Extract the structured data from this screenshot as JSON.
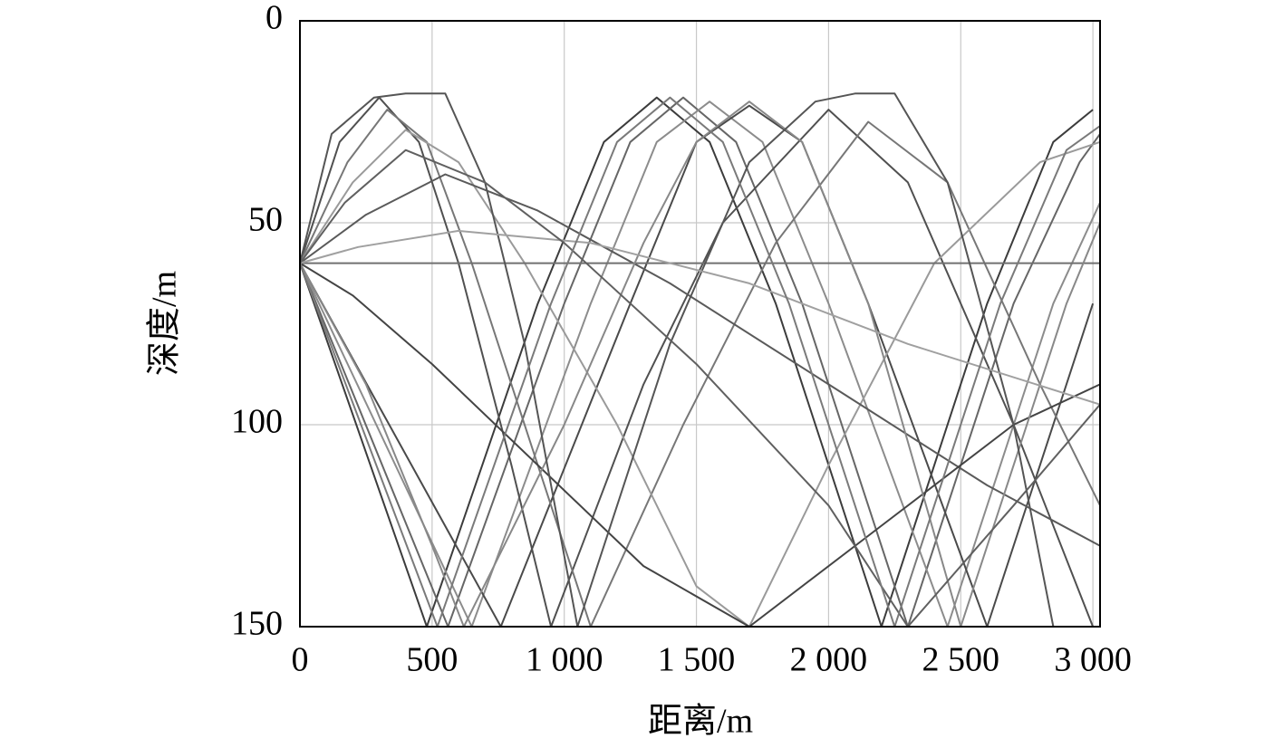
{
  "chart_data": {
    "type": "line",
    "xlabel": "距离/m",
    "ylabel": "深度/m",
    "xlim": [
      0,
      3027
    ],
    "ylim": [
      150,
      0
    ],
    "xticks": [
      0,
      500,
      {
        "value": 1000,
        "label": "1 000"
      },
      {
        "value": 1500,
        "label": "1 500"
      },
      {
        "value": 2000,
        "label": "2 000"
      },
      {
        "value": 2500,
        "label": "2 500"
      },
      {
        "value": 3000,
        "label": "3 000"
      }
    ],
    "yticks": [
      0,
      50,
      100,
      150
    ],
    "grid": true,
    "series": [
      {
        "color": "#3c3c3c",
        "x": [
          0,
          480,
          900,
          1150,
          1350,
          1550,
          1800,
          2200,
          2600,
          2850,
          3000
        ],
        "values": [
          60,
          150,
          70,
          30,
          19,
          30,
          70,
          150,
          70,
          30,
          22
        ]
      },
      {
        "color": "#666666",
        "x": [
          0,
          560,
          1000,
          1250,
          1450,
          1650,
          1900,
          2300,
          2700,
          2950,
          3027
        ],
        "values": [
          60,
          150,
          70,
          30,
          19,
          30,
          70,
          150,
          70,
          35,
          28
        ]
      },
      {
        "color": "#8c8c8c",
        "x": [
          0,
          650,
          1100,
          1350,
          1550,
          1750,
          2000,
          2450,
          2850,
          3027
        ],
        "values": [
          60,
          150,
          70,
          30,
          20,
          30,
          70,
          150,
          70,
          45
        ]
      },
      {
        "color": "#4a4a4a",
        "x": [
          0,
          760,
          1250,
          1500,
          1700,
          1900,
          2150,
          2600,
          3000
        ],
        "values": [
          60,
          150,
          70,
          30,
          21,
          30,
          70,
          150,
          70
        ]
      },
      {
        "color": "#505050",
        "x": [
          0,
          150,
          300,
          450,
          600,
          800,
          950,
          1300,
          1600,
          2000,
          2300,
          2700,
          3000
        ],
        "values": [
          60,
          30,
          19,
          30,
          60,
          110,
          150,
          90,
          50,
          22,
          40,
          100,
          150
        ]
      },
      {
        "color": "#777777",
        "x": [
          0,
          180,
          330,
          480,
          650,
          900,
          1100,
          1450,
          1800,
          2150,
          2450,
          2800,
          3027
        ],
        "values": [
          60,
          35,
          22,
          30,
          60,
          110,
          150,
          100,
          55,
          25,
          40,
          90,
          120
        ]
      },
      {
        "color": "#9a9a9a",
        "x": [
          0,
          200,
          400,
          600,
          850,
          1200,
          1500,
          1700,
          2000,
          2400,
          2800,
          3027
        ],
        "values": [
          60,
          40,
          27,
          35,
          60,
          100,
          140,
          150,
          110,
          60,
          35,
          30
        ]
      },
      {
        "color": "#5a5a5a",
        "x": [
          0,
          250,
          550,
          900,
          1400,
          2000,
          2600,
          3027
        ],
        "values": [
          60,
          48,
          38,
          47,
          65,
          90,
          115,
          130
        ]
      },
      {
        "color": "#707070",
        "x": [
          0,
          1500,
          3027
        ],
        "values": [
          60,
          60,
          60
        ]
      },
      {
        "color": "#444444",
        "x": [
          0,
          200,
          500,
          900,
          1300,
          1700,
          2200,
          2700,
          3027
        ],
        "values": [
          60,
          68,
          85,
          110,
          135,
          150,
          125,
          100,
          90
        ]
      },
      {
        "color": "#888888",
        "x": [
          0,
          250,
          500,
          620,
          1000,
          1300,
          1500,
          1700,
          1900,
          2150,
          2500,
          2900,
          3027
        ],
        "values": [
          60,
          90,
          130,
          150,
          100,
          55,
          30,
          20,
          30,
          70,
          150,
          70,
          50
        ]
      },
      {
        "color": "#555555",
        "x": [
          0,
          120,
          280,
          400,
          550,
          700,
          850,
          1050,
          1400,
          1700,
          1950,
          2100,
          2250,
          2450,
          2700,
          2850
        ],
        "values": [
          60,
          28,
          19,
          18,
          18,
          40,
          80,
          150,
          80,
          35,
          20,
          18,
          18,
          40,
          100,
          150
        ]
      },
      {
        "color": "#a0a0a0",
        "x": [
          0,
          220,
          600,
          1100,
          1700,
          2300,
          3027
        ],
        "values": [
          60,
          56,
          52,
          55,
          65,
          80,
          95
        ]
      },
      {
        "color": "#606060",
        "x": [
          0,
          170,
          400,
          700,
          1000,
          1500,
          2000,
          2300,
          2700,
          3027
        ],
        "values": [
          60,
          45,
          32,
          40,
          55,
          85,
          120,
          150,
          120,
          95
        ]
      },
      {
        "color": "#7a7a7a",
        "x": [
          0,
          520,
          950,
          1200,
          1400,
          1600,
          1850,
          2250,
          2650,
          2900,
          3027
        ],
        "values": [
          60,
          150,
          70,
          30,
          19,
          30,
          70,
          150,
          70,
          32,
          26
        ]
      }
    ]
  }
}
